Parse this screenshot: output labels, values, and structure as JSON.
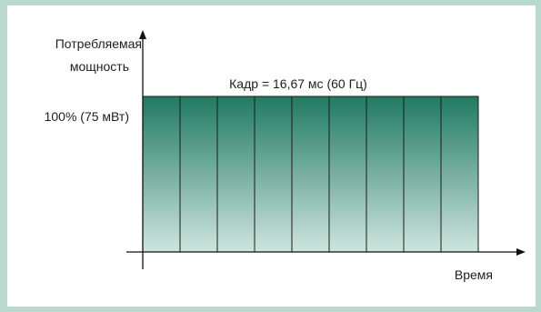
{
  "chart_data": {
    "type": "bar",
    "title": "Кадр = 16,67 мс (60 Гц)",
    "ylabel": [
      "Потребляемая",
      "мощность"
    ],
    "xlabel": "Время",
    "level_label": "100% (75 мВт)",
    "frame_count": 9,
    "values": [
      100,
      100,
      100,
      100,
      100,
      100,
      100,
      100,
      100
    ],
    "ylim": [
      0,
      100
    ],
    "grid": false,
    "legend": "none"
  },
  "colors": {
    "background_frame": "#b9d9cf",
    "bar_top": "#207a62",
    "bar_bottom": "#cfe5de",
    "bar_outline": "#1b1b1b",
    "axis": "#111111"
  }
}
